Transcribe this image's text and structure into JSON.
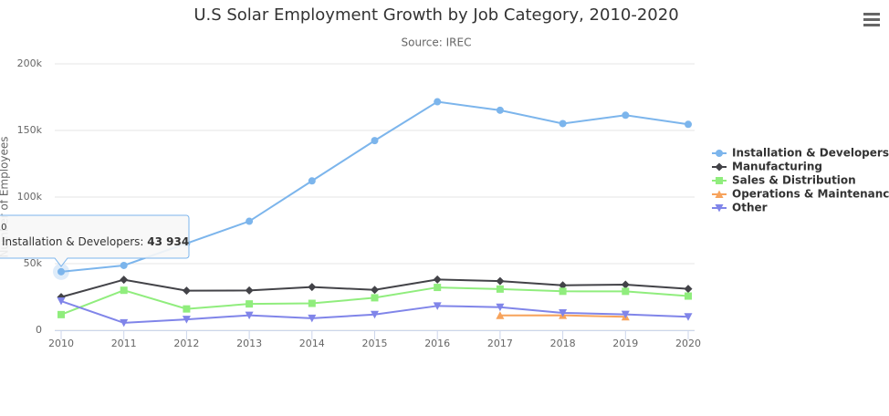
{
  "chart_data": {
    "type": "line",
    "title": "U.S Solar Employment Growth by Job Category, 2010-2020",
    "subtitle": "Source: IREC",
    "y_label": "Number of Employees",
    "x": [
      2010,
      2011,
      2012,
      2013,
      2014,
      2015,
      2016,
      2017,
      2018,
      2019,
      2020
    ],
    "xlim": [
      2010,
      2020
    ],
    "ylim": [
      0,
      200000
    ],
    "yticks": [
      0,
      {
        "value": 50000,
        "label": "50k"
      },
      {
        "value": 100000,
        "label": "100k"
      },
      {
        "value": 150000,
        "label": "150k"
      },
      {
        "value": 200000,
        "label": "200k"
      }
    ],
    "grid": true,
    "legend": "right",
    "series": [
      {
        "name": "Installation & Developers",
        "color": "#7cb5ec",
        "marker": "circle",
        "values": [
          43934,
          48656,
          65165,
          81827,
          112143,
          142383,
          171533,
          165174,
          155157,
          161454,
          154610
        ]
      },
      {
        "name": "Manufacturing",
        "color": "#434348",
        "marker": "diamond",
        "values": [
          24916,
          37941,
          29742,
          29851,
          32490,
          30282,
          38121,
          36885,
          33726,
          34243,
          31050
        ]
      },
      {
        "name": "Sales & Distribution",
        "color": "#90ed7d",
        "marker": "square",
        "values": [
          11744,
          30000,
          16005,
          19771,
          20185,
          24377,
          32147,
          30912,
          29243,
          29213,
          25663
        ]
      },
      {
        "name": "Operations & Maintenance",
        "color": "#f7a35c",
        "marker": "triangle",
        "values": [
          null,
          null,
          null,
          null,
          null,
          null,
          null,
          11164,
          11218,
          10077,
          null
        ]
      },
      {
        "name": "Other",
        "color": "#8085e9",
        "marker": "triangle-down",
        "values": [
          21908,
          5548,
          8105,
          11248,
          8989,
          11816,
          18274,
          17300,
          13053,
          11906,
          10073
        ]
      }
    ],
    "tooltip": {
      "value_label": "43 934"
    }
  }
}
